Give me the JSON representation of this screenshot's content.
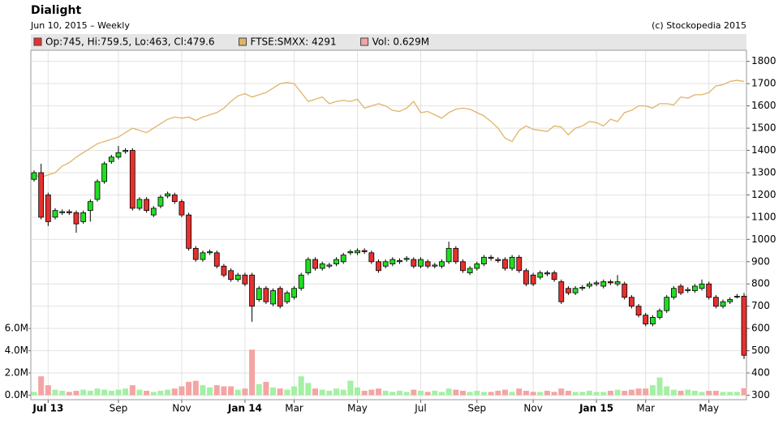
{
  "chart_data": {
    "type": "candlestick",
    "title": "Dialight",
    "subtitle": "Jun 10, 2015 – Weekly",
    "credit": "(c) Stockopedia 2015",
    "categories": [
      null,
      null,
      "Jul 13",
      null,
      null,
      null,
      null,
      null,
      null,
      null,
      null,
      null,
      "Sep",
      null,
      null,
      null,
      null,
      null,
      null,
      null,
      null,
      "Nov",
      null,
      null,
      null,
      null,
      null,
      null,
      null,
      null,
      "Jan 14",
      null,
      null,
      null,
      null,
      null,
      null,
      "Mar",
      null,
      null,
      null,
      null,
      null,
      null,
      null,
      null,
      "May",
      null,
      null,
      null,
      null,
      null,
      null,
      null,
      null,
      "Jul",
      null,
      null,
      null,
      null,
      null,
      null,
      null,
      "Sep",
      null,
      null,
      null,
      null,
      null,
      null,
      null,
      "Nov",
      null,
      null,
      null,
      null,
      null,
      null,
      null,
      null,
      "Jan 15",
      null,
      null,
      null,
      null,
      null,
      null,
      "Mar",
      null,
      null,
      null,
      null,
      null,
      null,
      null,
      null,
      "May",
      null,
      null,
      null,
      null,
      null
    ],
    "series": [
      {
        "name": "Op:745, Hi:759.5, Lo:463, Cl:479.6",
        "color": "#e8302e",
        "up_color": "#22dd22",
        "open": [
          1270,
          1300,
          1200,
          1100,
          1120,
          1125,
          1120,
          1080,
          1130,
          1180,
          1260,
          1350,
          1370,
          1395,
          1400,
          1140,
          1180,
          1110,
          1150,
          1195,
          1200,
          1170,
          1110,
          960,
          910,
          940,
          940,
          880,
          860,
          820,
          840,
          840,
          730,
          780,
          710,
          780,
          720,
          740,
          780,
          850,
          910,
          870,
          880,
          890,
          900,
          940,
          940,
          950,
          940,
          900,
          880,
          890,
          900,
          910,
          910,
          880,
          900,
          880,
          880,
          900,
          960,
          900,
          850,
          870,
          890,
          920,
          910,
          910,
          870,
          920,
          860,
          840,
          830,
          850,
          850,
          810,
          780,
          760,
          780,
          790,
          800,
          790,
          810,
          800,
          800,
          740,
          700,
          660,
          620,
          650,
          680,
          740,
          790,
          770,
          770,
          780,
          800,
          740,
          700,
          720,
          745,
          745
        ],
        "high": [
          1310,
          1340,
          1210,
          1140,
          1135,
          1135,
          1130,
          1130,
          1180,
          1270,
          1350,
          1380,
          1420,
          1410,
          1410,
          1190,
          1190,
          1150,
          1200,
          1215,
          1210,
          1180,
          1120,
          970,
          950,
          955,
          950,
          890,
          870,
          850,
          850,
          850,
          790,
          790,
          780,
          790,
          770,
          790,
          850,
          920,
          920,
          900,
          895,
          920,
          940,
          955,
          960,
          960,
          950,
          910,
          910,
          920,
          915,
          925,
          920,
          920,
          910,
          895,
          910,
          990,
          970,
          910,
          880,
          900,
          930,
          930,
          920,
          920,
          930,
          930,
          870,
          850,
          860,
          860,
          860,
          820,
          790,
          790,
          795,
          810,
          815,
          820,
          820,
          840,
          810,
          750,
          710,
          670,
          660,
          690,
          750,
          790,
          800,
          785,
          800,
          820,
          810,
          750,
          730,
          740,
          755,
          759.5
        ],
        "low": [
          1260,
          1090,
          1060,
          1090,
          1110,
          1110,
          1030,
          1070,
          1080,
          1170,
          1250,
          1340,
          1360,
          1385,
          1130,
          1130,
          1120,
          1100,
          1140,
          1185,
          1160,
          1100,
          950,
          900,
          900,
          930,
          870,
          830,
          810,
          810,
          790,
          630,
          720,
          710,
          700,
          690,
          710,
          730,
          770,
          840,
          860,
          860,
          870,
          880,
          890,
          930,
          930,
          935,
          890,
          850,
          870,
          880,
          890,
          900,
          870,
          870,
          870,
          870,
          870,
          890,
          890,
          850,
          840,
          860,
          880,
          905,
          895,
          860,
          860,
          850,
          790,
          790,
          820,
          835,
          810,
          710,
          750,
          750,
          770,
          780,
          790,
          780,
          795,
          790,
          730,
          690,
          650,
          610,
          610,
          640,
          670,
          730,
          750,
          760,
          760,
          770,
          730,
          690,
          690,
          710,
          735,
          463
        ],
        "close": [
          1300,
          1100,
          1080,
          1130,
          1125,
          1120,
          1070,
          1120,
          1170,
          1260,
          1340,
          1370,
          1390,
          1400,
          1140,
          1180,
          1130,
          1140,
          1190,
          1205,
          1170,
          1110,
          960,
          910,
          940,
          945,
          880,
          840,
          820,
          840,
          800,
          700,
          780,
          720,
          770,
          700,
          760,
          780,
          840,
          910,
          870,
          890,
          885,
          910,
          930,
          945,
          950,
          945,
          900,
          860,
          900,
          910,
          905,
          915,
          880,
          910,
          880,
          885,
          900,
          960,
          900,
          860,
          870,
          890,
          920,
          915,
          905,
          870,
          920,
          860,
          800,
          800,
          850,
          845,
          820,
          720,
          760,
          780,
          785,
          800,
          805,
          810,
          805,
          810,
          740,
          700,
          660,
          620,
          650,
          680,
          740,
          780,
          760,
          775,
          790,
          800,
          740,
          700,
          720,
          730,
          745,
          479.6
        ]
      },
      {
        "name": "FTSE:SMXX: 4291",
        "color": "#e0b468",
        "values": [
          1290,
          1280,
          1290,
          1300,
          1330,
          1345,
          1370,
          1390,
          1410,
          1430,
          1440,
          1450,
          1460,
          1480,
          1500,
          1490,
          1480,
          1500,
          1520,
          1540,
          1550,
          1545,
          1550,
          1535,
          1550,
          1560,
          1570,
          1590,
          1620,
          1645,
          1655,
          1640,
          1650,
          1660,
          1680,
          1700,
          1705,
          1700,
          1660,
          1620,
          1630,
          1640,
          1610,
          1620,
          1625,
          1620,
          1630,
          1590,
          1600,
          1610,
          1600,
          1580,
          1575,
          1590,
          1620,
          1570,
          1575,
          1560,
          1545,
          1570,
          1585,
          1590,
          1585,
          1570,
          1555,
          1530,
          1500,
          1455,
          1440,
          1490,
          1510,
          1495,
          1490,
          1485,
          1510,
          1505,
          1470,
          1500,
          1510,
          1530,
          1525,
          1510,
          1540,
          1530,
          1570,
          1580,
          1600,
          1600,
          1590,
          1610,
          1610,
          1605,
          1640,
          1635,
          1650,
          1650,
          1660,
          1690,
          1695,
          1710,
          1715,
          1710
        ]
      },
      {
        "name": "Vol: 0.629M",
        "color": "#f4a4a4",
        "up_color": "#a4f0a4",
        "axis": "y2",
        "values": [
          0.3,
          1.7,
          0.9,
          0.5,
          0.4,
          0.3,
          0.4,
          0.5,
          0.4,
          0.6,
          0.5,
          0.4,
          0.5,
          0.6,
          0.9,
          0.5,
          0.4,
          0.3,
          0.4,
          0.5,
          0.6,
          0.8,
          1.2,
          1.3,
          0.9,
          0.7,
          0.9,
          0.8,
          0.8,
          0.5,
          0.6,
          4.1,
          1.0,
          1.2,
          0.7,
          0.6,
          0.5,
          0.8,
          1.7,
          1.1,
          0.6,
          0.5,
          0.4,
          0.6,
          0.5,
          1.3,
          0.7,
          0.4,
          0.5,
          0.6,
          0.4,
          0.3,
          0.4,
          0.3,
          0.5,
          0.4,
          0.3,
          0.4,
          0.3,
          0.6,
          0.5,
          0.4,
          0.3,
          0.4,
          0.3,
          0.3,
          0.4,
          0.5,
          0.3,
          0.6,
          0.4,
          0.3,
          0.3,
          0.4,
          0.3,
          0.6,
          0.4,
          0.3,
          0.3,
          0.4,
          0.3,
          0.3,
          0.4,
          0.5,
          0.4,
          0.5,
          0.6,
          0.6,
          0.9,
          1.6,
          0.8,
          0.5,
          0.4,
          0.5,
          0.4,
          0.3,
          0.4,
          0.4,
          0.3,
          0.3,
          0.3,
          0.629
        ]
      }
    ],
    "ylim": [
      280,
      1850
    ],
    "yticks": [
      300,
      400,
      500,
      600,
      700,
      800,
      900,
      1000,
      1100,
      1200,
      1300,
      1400,
      1500,
      1600,
      1700,
      1800
    ],
    "y2lim": [
      -0.4,
      31
    ],
    "y2ticks": [
      {
        "value": 0,
        "label": "0.0M"
      },
      {
        "value": 2,
        "label": "2.0M"
      },
      {
        "value": 4,
        "label": "4.0M"
      },
      {
        "value": 6,
        "label": "6.0M"
      }
    ],
    "grid": true
  }
}
